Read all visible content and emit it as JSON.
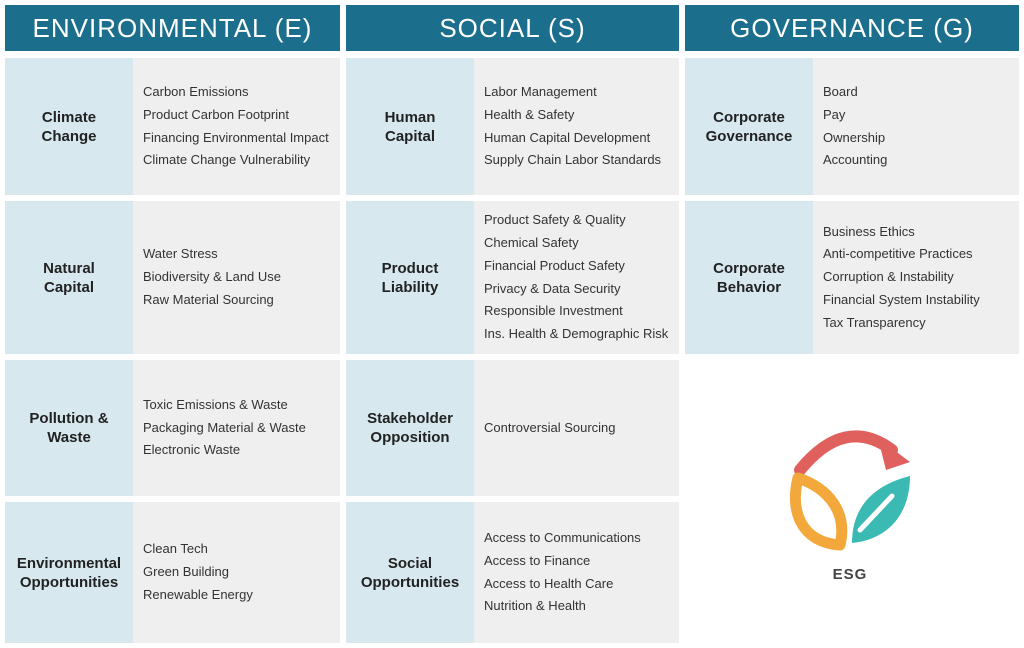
{
  "columns": [
    {
      "title": "ENVIRONMENTAL (E)",
      "blocks": [
        {
          "category": [
            "Climate",
            "Change"
          ],
          "items": [
            "Carbon Emissions",
            "Product Carbon Footprint",
            "Financing Environmental Impact",
            "Climate Change Vulnerability"
          ]
        },
        {
          "category": [
            "Natural",
            "Capital"
          ],
          "items": [
            "Water Stress",
            "Biodiversity & Land Use",
            "Raw Material Sourcing"
          ]
        },
        {
          "category": [
            "Pollution &",
            "Waste"
          ],
          "items": [
            "Toxic Emissions & Waste",
            "Packaging Material & Waste",
            "Electronic Waste"
          ]
        },
        {
          "category": [
            "Environmental",
            "Opportunities"
          ],
          "items": [
            "Clean Tech",
            "Green Building",
            "Renewable Energy"
          ]
        }
      ]
    },
    {
      "title": "SOCIAL (S)",
      "blocks": [
        {
          "category": [
            "Human",
            "Capital"
          ],
          "items": [
            "Labor Management",
            "Health & Safety",
            "Human Capital Development",
            "Supply Chain Labor Standards"
          ]
        },
        {
          "category": [
            "Product",
            "Liability"
          ],
          "items": [
            "Product Safety & Quality",
            "Chemical Safety",
            "Financial Product Safety",
            "Privacy & Data Security",
            "Responsible Investment",
            "Ins. Health & Demographic Risk"
          ]
        },
        {
          "category": [
            "Stakeholder",
            "Opposition"
          ],
          "items": [
            "Controversial Sourcing"
          ]
        },
        {
          "category": [
            "Social",
            "Opportunities"
          ],
          "items": [
            "Access to Communications",
            "Access to Finance",
            "Access to Health Care",
            "Nutrition & Health"
          ]
        }
      ]
    },
    {
      "title": "GOVERNANCE (G)",
      "blocks": [
        {
          "category": [
            "Corporate",
            "Governance"
          ],
          "items": [
            "Board",
            "Pay",
            "Ownership",
            "Accounting"
          ]
        },
        {
          "category": [
            "Corporate",
            "Behavior"
          ],
          "items": [
            "Business Ethics",
            "Anti-competitive Practices",
            "Corruption & Instability",
            "Financial System Instability",
            "Tax Transparency"
          ]
        }
      ]
    }
  ],
  "logo": {
    "label": "ESG"
  },
  "colors": {
    "header": "#1b6f8c",
    "category_bg": "#d7e8ef",
    "items_bg": "#efefef",
    "arrow": "#e0605e",
    "leaf_left": "#f3a83b",
    "leaf_right": "#3bb9b3"
  }
}
